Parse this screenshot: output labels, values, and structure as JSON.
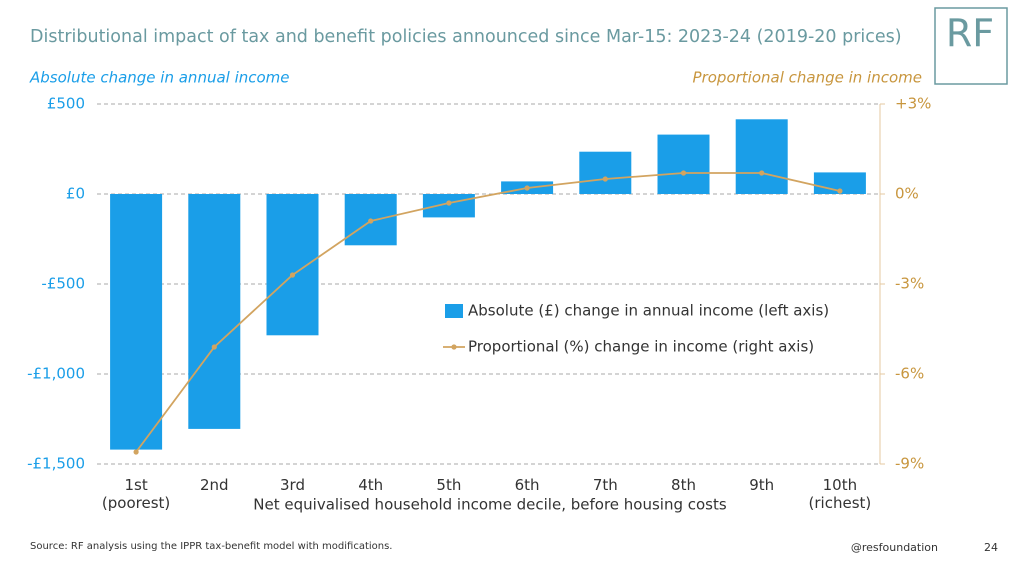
{
  "chart_data": {
    "type": "bar_line",
    "title": "Distributional impact of tax and benefit policies announced since Mar-15: 2023-24 (2019-20 prices)",
    "y_label": "Absolute change in annual income",
    "y2_label": "Proportional change in income",
    "x_label": "Net equivalised household income decile, before housing costs",
    "categories": [
      "1st\n(poorest)",
      "2nd",
      "3rd",
      "4th",
      "5th",
      "6th",
      "7th",
      "8th",
      "9th",
      "10th\n(richest)"
    ],
    "series": [
      {
        "name": "Absolute (£) change in annual income (left axis)",
        "type": "bar",
        "color": "#1a9ee8",
        "axis": "y",
        "values": [
          -1420,
          -1305,
          -785,
          -285,
          -130,
          70,
          235,
          330,
          415,
          120
        ]
      },
      {
        "name": "Proportional (%) change in income (right axis)",
        "type": "line",
        "color": "#d2a460",
        "axis": "y2",
        "values": [
          -8.6,
          -5.1,
          -2.7,
          -0.9,
          -0.3,
          0.2,
          0.5,
          0.7,
          0.7,
          0.1
        ]
      }
    ],
    "ylim": [
      -1500,
      500
    ],
    "yticks": [
      {
        "value": 500,
        "label": "£500"
      },
      {
        "value": 0,
        "label": "£0"
      },
      {
        "value": -500,
        "label": "-£500"
      },
      {
        "value": -1000,
        "label": "-£1,000"
      },
      {
        "value": -1500,
        "label": "-£1,500"
      }
    ],
    "y2lim": [
      -9,
      3
    ],
    "y2ticks": [
      {
        "value": 3,
        "label": "+3%"
      },
      {
        "value": 0,
        "label": "0%"
      },
      {
        "value": -3,
        "label": "-3%"
      },
      {
        "value": -6,
        "label": "-6%"
      },
      {
        "value": -9,
        "label": "-9%"
      }
    ],
    "grid": true,
    "source": "Source: RF analysis using the IPPR tax-benefit model with modifications.",
    "handle": "@resfoundation",
    "page_number": "24",
    "logo": "RF"
  }
}
